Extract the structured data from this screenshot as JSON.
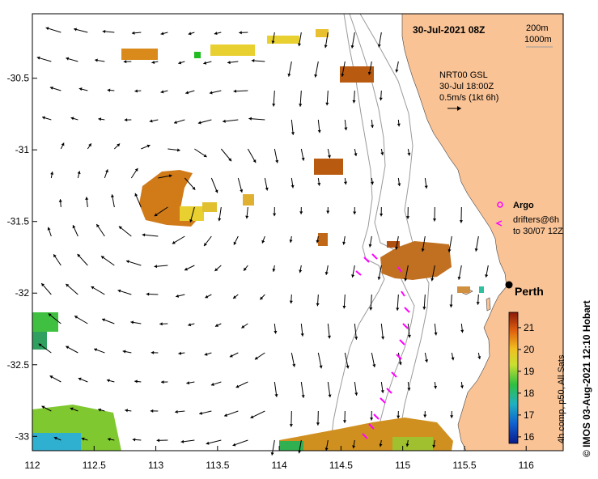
{
  "map": {
    "title": "30-Jul-2021 08Z",
    "depth_contours": [
      "200m",
      "1000m"
    ],
    "vector_info": {
      "model": "NRT00 GSL",
      "model_time": "30-Jul 18:00Z",
      "scale_label": "0.5m/s (1kt 6h)"
    },
    "legend": {
      "argo_label": "Argo",
      "drifters_label_line1": "drifters@6h",
      "drifters_label_line2": "to 30/07 12Z"
    },
    "city": "Perth",
    "colorbar": {
      "title": "4h comp, p50, All Sats",
      "ticks": [
        "21",
        "20",
        "19",
        "18",
        "17",
        "16"
      ],
      "min": 15.7,
      "max": 21.7
    },
    "credit": "© IMOS 03-Aug-2021 12:10 Hobart",
    "lon_ticks": [
      "112",
      "112.5",
      "113",
      "113.5",
      "114",
      "114.5",
      "115",
      "115.5",
      "116"
    ],
    "lat_ticks": [
      "-30.5",
      "-31",
      "-31.5",
      "-32",
      "-32.5",
      "-33"
    ],
    "lon_range": [
      112.0,
      116.3
    ],
    "lat_range": [
      -33.1,
      -30.05
    ],
    "colors": {
      "land": "#f9c396",
      "argo": "#ff00ff",
      "drifter": "#ff00ff",
      "arrow": "#000000"
    }
  }
}
